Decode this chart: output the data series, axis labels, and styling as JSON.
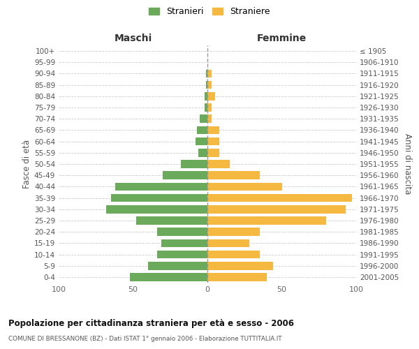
{
  "age_groups": [
    "0-4",
    "5-9",
    "10-14",
    "15-19",
    "20-24",
    "25-29",
    "30-34",
    "35-39",
    "40-44",
    "45-49",
    "50-54",
    "55-59",
    "60-64",
    "65-69",
    "70-74",
    "75-79",
    "80-84",
    "85-89",
    "90-94",
    "95-99",
    "100+"
  ],
  "birth_years": [
    "2001-2005",
    "1996-2000",
    "1991-1995",
    "1986-1990",
    "1981-1985",
    "1976-1980",
    "1971-1975",
    "1966-1970",
    "1961-1965",
    "1956-1960",
    "1951-1955",
    "1946-1950",
    "1941-1945",
    "1936-1940",
    "1931-1935",
    "1926-1930",
    "1921-1925",
    "1916-1920",
    "1911-1915",
    "1906-1910",
    "≤ 1905"
  ],
  "maschi": [
    52,
    40,
    34,
    31,
    34,
    48,
    68,
    65,
    62,
    30,
    18,
    6,
    8,
    7,
    5,
    2,
    2,
    1,
    1,
    0,
    0
  ],
  "femmine": [
    40,
    44,
    35,
    28,
    35,
    80,
    93,
    97,
    50,
    35,
    15,
    8,
    8,
    8,
    3,
    3,
    5,
    3,
    3,
    0,
    0
  ],
  "maschi_color": "#6aaa5a",
  "femmine_color": "#f5b942",
  "grid_color": "#cccccc",
  "title_main": "Popolazione per cittadinanza straniera per età e sesso - 2006",
  "title_sub": "COMUNE DI BRESSANONE (BZ) - Dati ISTAT 1° gennaio 2006 - Elaborazione TUTTITALIA.IT",
  "header_left": "Maschi",
  "header_right": "Femmine",
  "ylabel_left": "Fasce di età",
  "ylabel_right": "Anni di nascita",
  "legend_stranieri": "Stranieri",
  "legend_straniere": "Straniere",
  "xlim": 100
}
